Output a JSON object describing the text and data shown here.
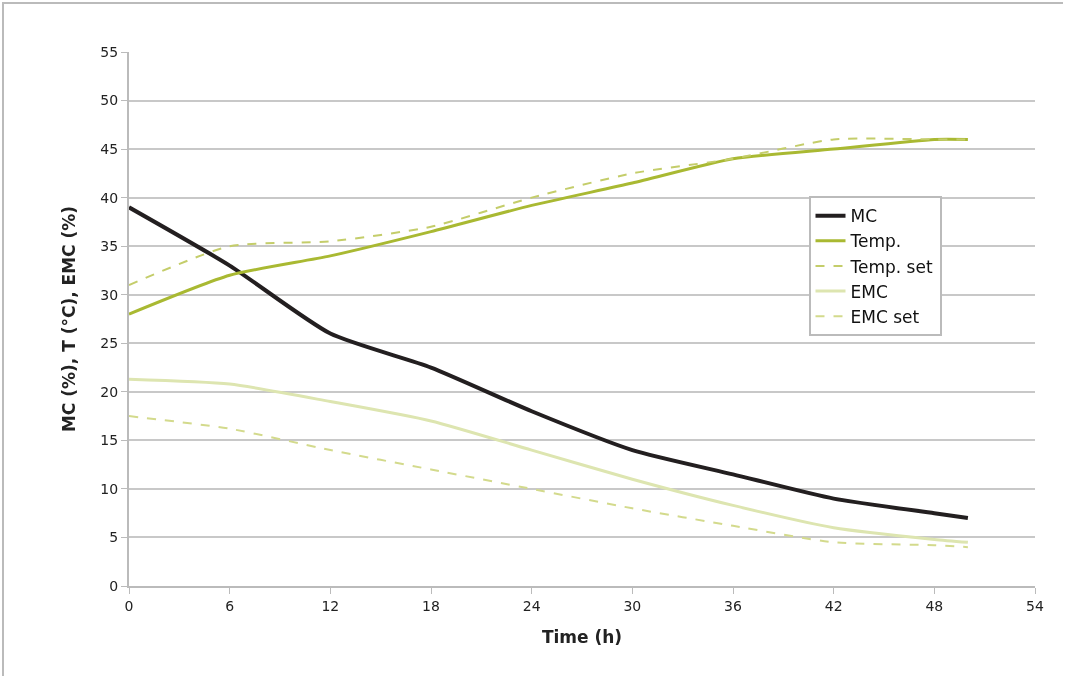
{
  "chart_data": {
    "type": "line",
    "xlabel": "Time (h)",
    "ylabel": "MC (%), T (°C), EMC (%)",
    "x": [
      0,
      6,
      12,
      18,
      24,
      30,
      36,
      42,
      48,
      50
    ],
    "xlim": [
      0,
      54
    ],
    "xticks": [
      0,
      6,
      12,
      18,
      24,
      30,
      36,
      42,
      48,
      54
    ],
    "ylim": [
      0,
      55
    ],
    "yticks": [
      0,
      5,
      10,
      15,
      20,
      25,
      30,
      35,
      40,
      45,
      50,
      55
    ],
    "grid": "y",
    "legend": "right",
    "marker": "none",
    "series": [
      {
        "name": "MC",
        "color": "#231f20",
        "line_style": "solid",
        "values": [
          39,
          33,
          26,
          22.5,
          18,
          14,
          11.5,
          9,
          7.5,
          7
        ]
      },
      {
        "name": "Temp.",
        "color": "#a9b932",
        "line_style": "solid",
        "values": [
          28,
          32,
          34,
          36.5,
          39.2,
          41.5,
          44,
          45,
          46,
          46
        ]
      },
      {
        "name": "Temp. set",
        "color": "#c4cd6a",
        "line_style": "dashed",
        "values": [
          31,
          35,
          35.5,
          37,
          40,
          42.5,
          44,
          46,
          46,
          46
        ]
      },
      {
        "name": "EMC",
        "color": "#dde5b0",
        "line_style": "solid",
        "values": [
          21.3,
          20.8,
          19,
          17,
          14,
          11,
          8.3,
          6,
          4.8,
          4.5
        ]
      },
      {
        "name": "EMC set",
        "color": "#d3da8c",
        "line_style": "dashed",
        "values": [
          17.5,
          16.2,
          14,
          12,
          10,
          8,
          6.2,
          4.5,
          4.2,
          4
        ]
      }
    ]
  }
}
